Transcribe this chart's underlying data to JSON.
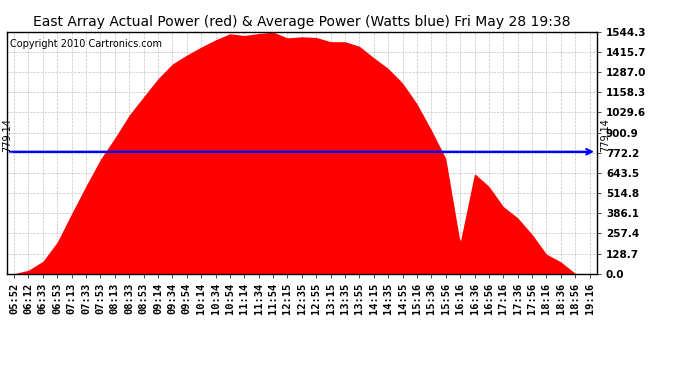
{
  "title": "East Array Actual Power (red) & Average Power (Watts blue) Fri May 28 19:38",
  "copyright": "Copyright 2010 Cartronics.com",
  "average_power": 779.14,
  "y_max": 1544.3,
  "y_min": 0.0,
  "y_ticks": [
    0.0,
    128.7,
    257.4,
    386.1,
    514.8,
    643.5,
    772.2,
    900.9,
    1029.6,
    1158.3,
    1287.0,
    1415.7,
    1544.3
  ],
  "x_labels": [
    "05:52",
    "06:12",
    "06:33",
    "06:53",
    "07:13",
    "07:33",
    "07:53",
    "08:13",
    "08:33",
    "08:53",
    "09:14",
    "09:34",
    "09:54",
    "10:14",
    "10:34",
    "10:54",
    "11:14",
    "11:34",
    "11:54",
    "12:15",
    "12:35",
    "12:55",
    "13:15",
    "13:35",
    "13:55",
    "14:15",
    "14:35",
    "14:55",
    "15:16",
    "15:36",
    "15:56",
    "16:16",
    "16:36",
    "16:56",
    "17:16",
    "17:36",
    "17:56",
    "18:16",
    "18:36",
    "18:56",
    "19:16"
  ],
  "background_color": "#ffffff",
  "fill_color": "#ff0000",
  "line_color": "#0000ff",
  "grid_color": "#aaaaaa",
  "title_fontsize": 10,
  "copyright_fontsize": 7,
  "tick_fontsize": 7.5,
  "annotation_fontsize": 7
}
